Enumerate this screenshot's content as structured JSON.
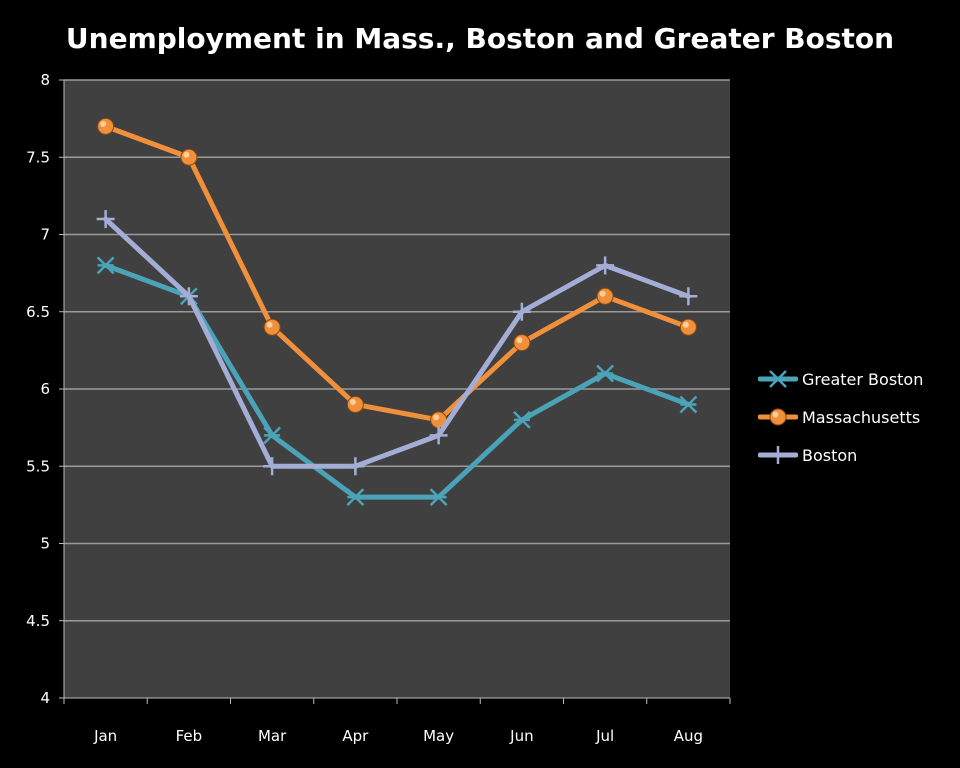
{
  "chart_data": {
    "type": "line",
    "title": "Unemployment in Mass., Boston and Greater Boston",
    "xlabel": "",
    "ylabel": "",
    "categories": [
      "Jan",
      "Feb",
      "Mar",
      "Apr",
      "May",
      "Jun",
      "Jul",
      "Aug"
    ],
    "ylim": [
      4,
      8
    ],
    "yticks": [
      "4",
      "4.5",
      "5",
      "5.5",
      "6",
      "6.5",
      "7",
      "7.5",
      "8"
    ],
    "grid": true,
    "legend_position": "right",
    "plot_background": "#404040",
    "series": [
      {
        "name": "Greater Boston",
        "color": "#4ba3b8",
        "marker": "asterisk",
        "values": [
          6.8,
          6.6,
          5.7,
          5.3,
          5.3,
          5.8,
          6.1,
          5.9
        ]
      },
      {
        "name": "Massachusetts",
        "color": "#f0903a",
        "marker": "circle",
        "values": [
          7.7,
          7.5,
          6.4,
          5.9,
          5.8,
          6.3,
          6.6,
          6.4
        ]
      },
      {
        "name": "Boston",
        "color": "#a3add6",
        "marker": "plus",
        "values": [
          7.1,
          6.6,
          5.5,
          5.5,
          5.7,
          6.5,
          6.8,
          6.6
        ]
      }
    ]
  }
}
